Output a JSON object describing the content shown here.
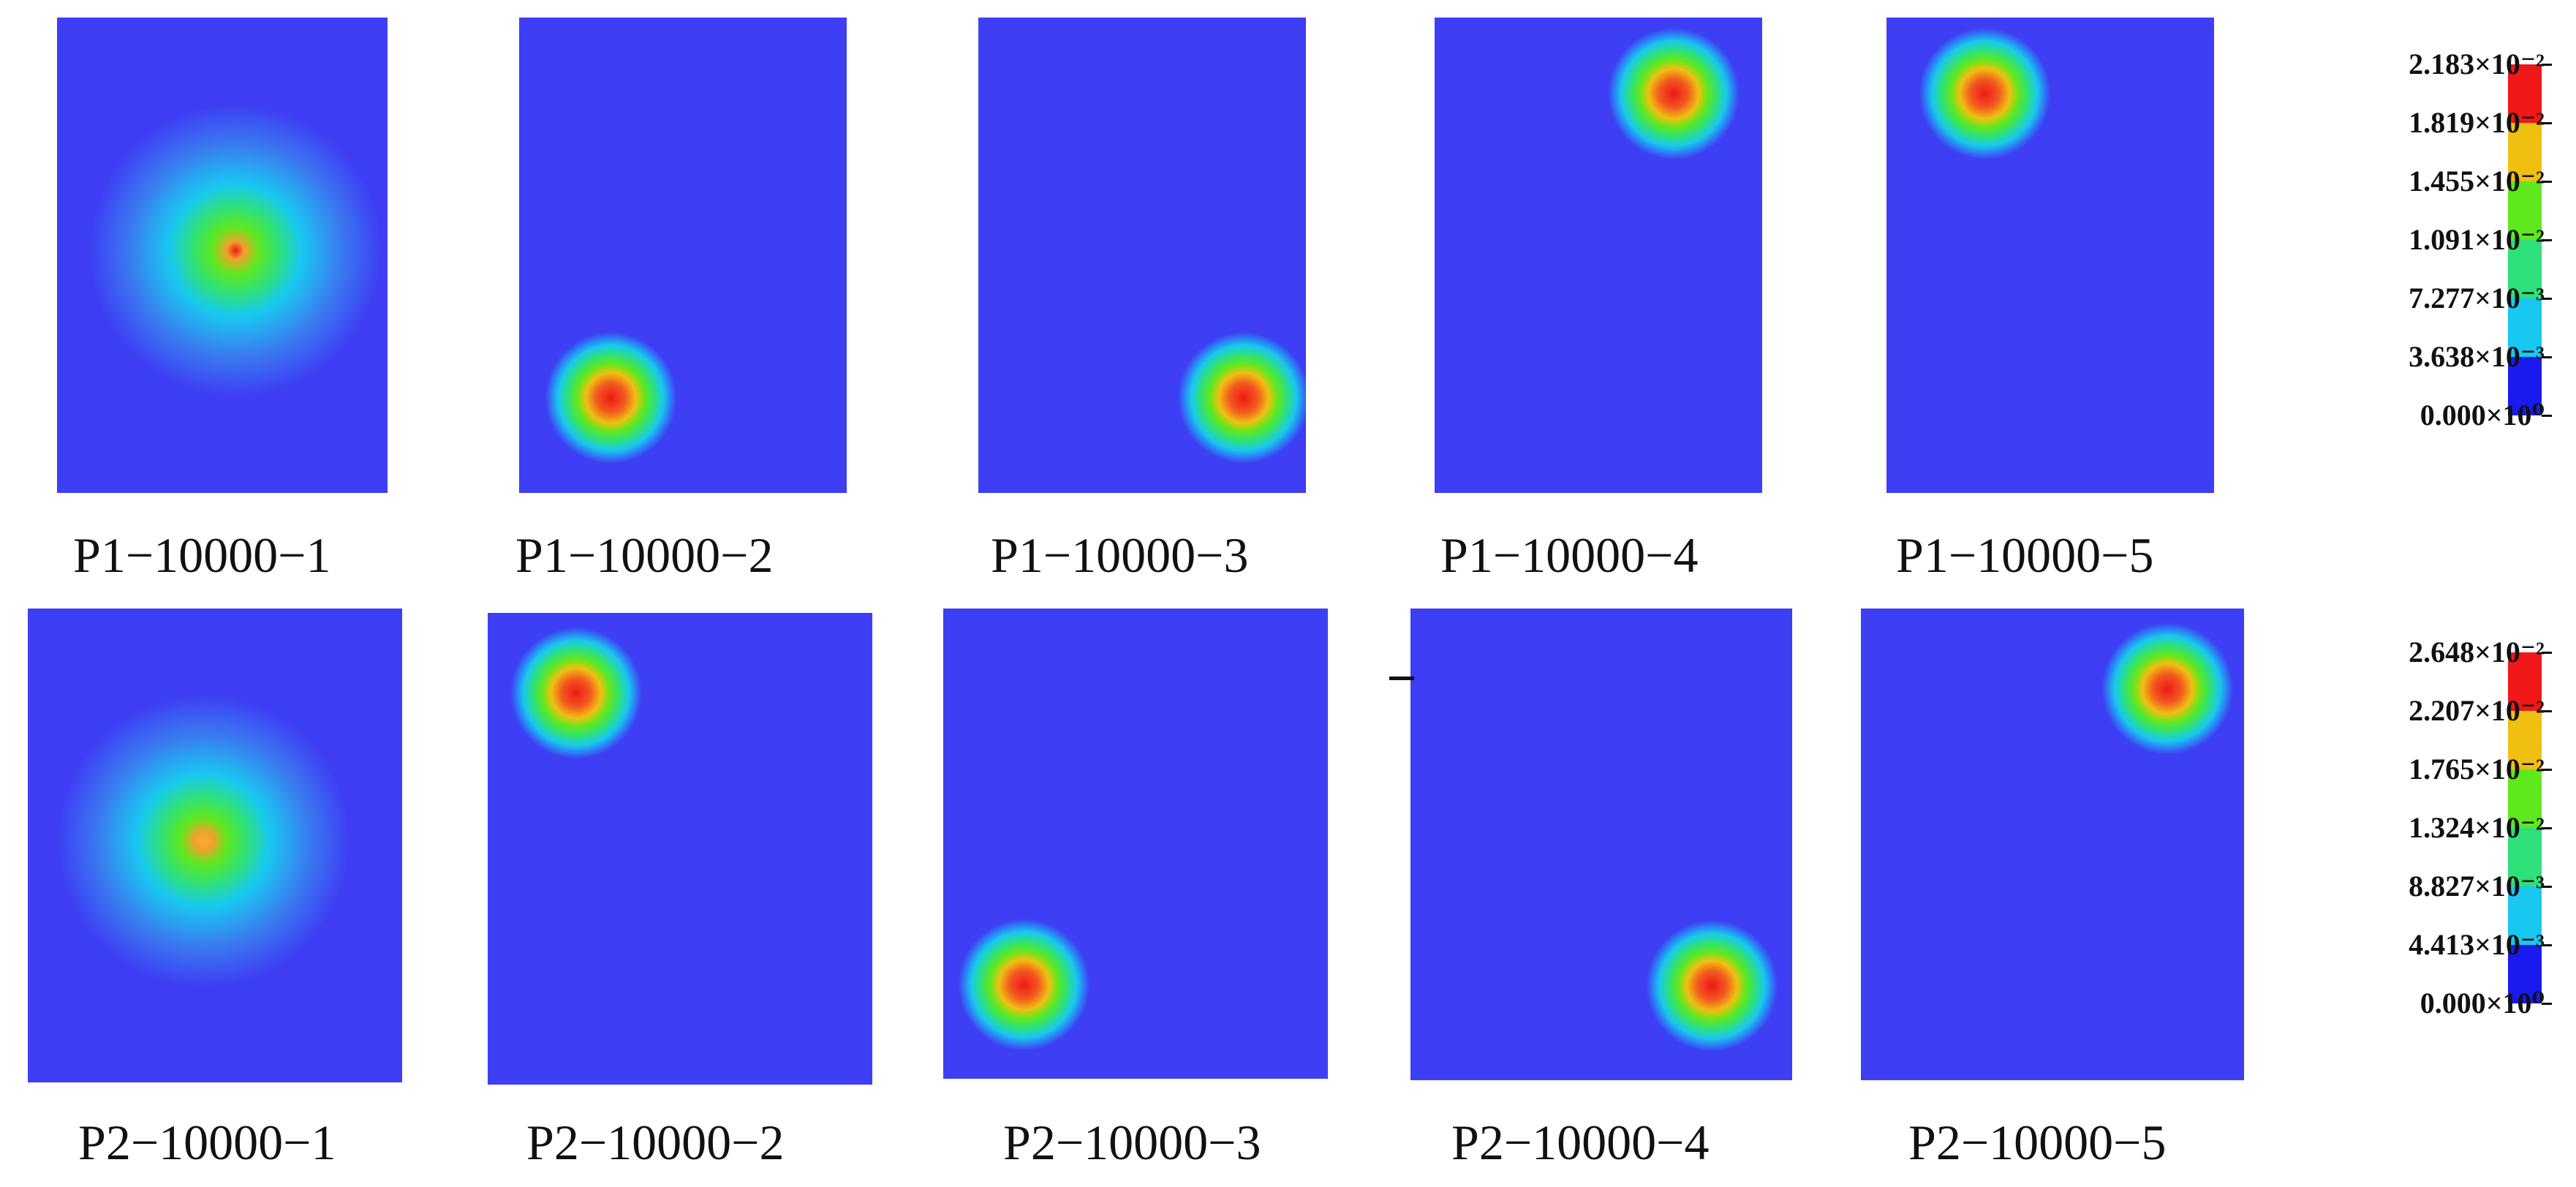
{
  "colors": {
    "field": "#3e3ef5",
    "scale": [
      "#1a1af0",
      "#18c8f0",
      "#2ee07a",
      "#5ee81e",
      "#f0c010",
      "#f01818"
    ]
  },
  "rows": [
    {
      "panels": [
        {
          "label": "P1−10000−1",
          "hotspot": {
            "u": 0.54,
            "v": 0.49
          },
          "peak_level": 0.97,
          "halo": "wide"
        },
        {
          "label": "P1−10000−2",
          "hotspot": {
            "u": 0.28,
            "v": 0.8
          },
          "peak_level": 0.97,
          "halo": "tight"
        },
        {
          "label": "P1−10000−3",
          "hotspot": {
            "u": 0.81,
            "v": 0.8
          },
          "peak_level": 0.97,
          "halo": "tight"
        },
        {
          "label": "P1−10000−4",
          "hotspot": {
            "u": 0.73,
            "v": 0.16
          },
          "peak_level": 0.97,
          "halo": "tight"
        },
        {
          "label": "P1−10000−5",
          "hotspot": {
            "u": 0.3,
            "v": 0.16
          },
          "peak_level": 0.97,
          "halo": "tight"
        }
      ],
      "legend": {
        "ticks": [
          "2.183×10⁻²",
          "1.819×10⁻²",
          "1.455×10⁻²",
          "1.091×10⁻²",
          "7.277×10⁻³",
          "3.638×10⁻³",
          "0.000×10⁰"
        ]
      }
    },
    {
      "panels": [
        {
          "label": "P2−10000−1",
          "hotspot": {
            "u": 0.47,
            "v": 0.49
          },
          "peak_level": 0.84,
          "halo": "wide"
        },
        {
          "label": "P2−10000−2",
          "hotspot": {
            "u": 0.23,
            "v": 0.17
          },
          "peak_level": 0.97,
          "halo": "tight"
        },
        {
          "label": "P2−10000−3",
          "hotspot": {
            "u": 0.21,
            "v": 0.8
          },
          "peak_level": 0.97,
          "halo": "tight"
        },
        {
          "label": "P2−10000−4",
          "hotspot": {
            "u": 0.79,
            "v": 0.8
          },
          "peak_level": 0.97,
          "halo": "tight"
        },
        {
          "label": "P2−10000−5",
          "hotspot": {
            "u": 0.8,
            "v": 0.17
          },
          "peak_level": 0.97,
          "halo": "tight"
        }
      ],
      "legend": {
        "ticks": [
          "2.648×10⁻²",
          "2.207×10⁻²",
          "1.765×10⁻²",
          "1.324×10⁻²",
          "8.827×10⁻³",
          "4.413×10⁻³",
          "0.000×10⁰"
        ]
      }
    }
  ]
}
